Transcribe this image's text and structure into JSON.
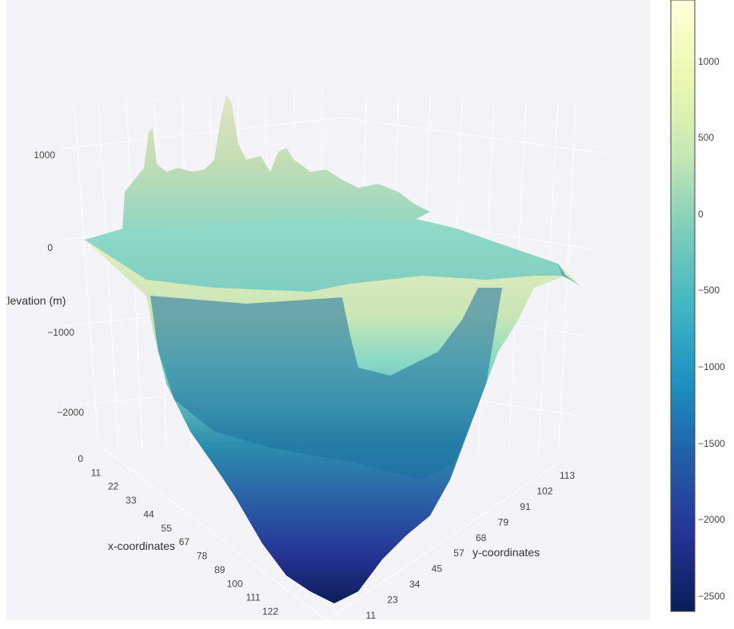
{
  "chart_data": {
    "type": "surface3d",
    "title": "",
    "zlabel": "Elevation (m)",
    "xlabel": "x-coordinates",
    "ylabel": "y-coordinates",
    "z_ticks": [
      "1000",
      "0",
      "−1000",
      "−2000"
    ],
    "x_ticks": [
      "0",
      "11",
      "22",
      "33",
      "44",
      "55",
      "67",
      "78",
      "89",
      "100",
      "111",
      "122"
    ],
    "y_ticks": [
      "11",
      "23",
      "34",
      "45",
      "57",
      "68",
      "79",
      "91",
      "102",
      "113"
    ],
    "z_range": [
      -2600,
      1400
    ],
    "colorscale": "YlGnBu",
    "colorbar": {
      "ticks": [
        "1000",
        "500",
        "0",
        "−500",
        "−1000",
        "−1500",
        "−2000",
        "−2500"
      ],
      "range": [
        -2600,
        1400
      ],
      "colors": [
        "#ffffd9",
        "#edf8b1",
        "#c7e9b4",
        "#7fcdbb",
        "#41b6c4",
        "#1d91c0",
        "#225ea8",
        "#253494",
        "#081d58"
      ]
    }
  }
}
